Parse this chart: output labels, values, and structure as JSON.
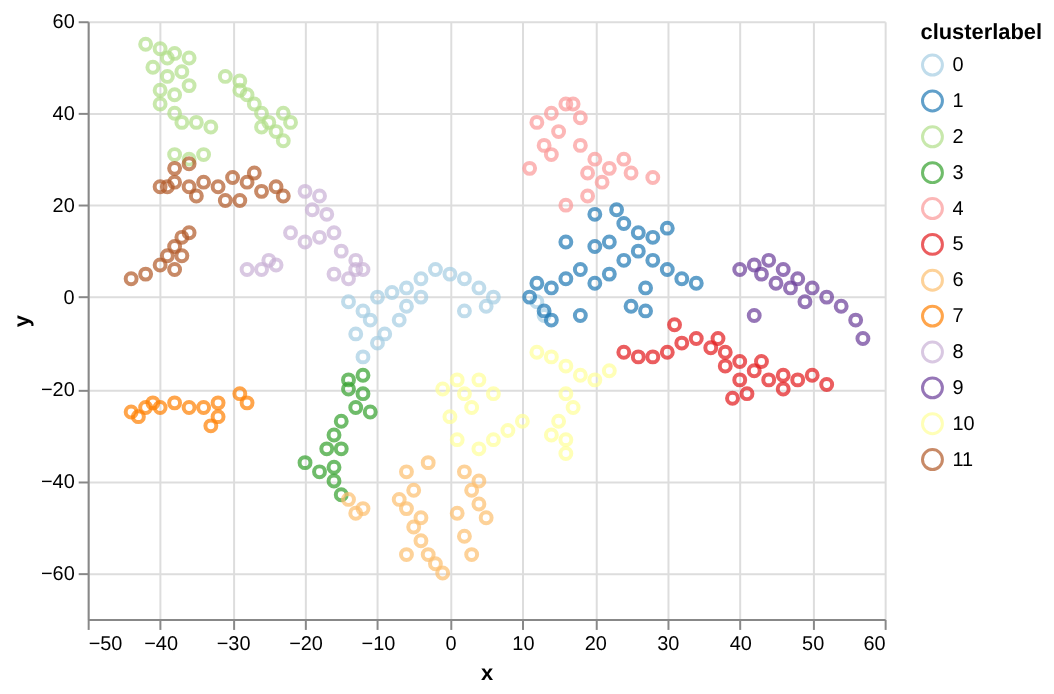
{
  "chart_data": {
    "type": "scatter",
    "xlabel": "x",
    "ylabel": "y",
    "legend_title": "clusterlabel",
    "legend": "top right",
    "grid": true,
    "marker": "circle",
    "xlim": [
      -50,
      60
    ],
    "ylim": [
      -70,
      60
    ],
    "xticks": [
      -50,
      -40,
      -30,
      -20,
      -10,
      0,
      10,
      20,
      30,
      40,
      50,
      60
    ],
    "yticks": [
      -60,
      -40,
      -20,
      0,
      20,
      40,
      60
    ],
    "series": [
      {
        "name": "0",
        "color": "#a6cee3",
        "x": [
          -14,
          -12,
          -10,
          -8,
          -6,
          -4,
          -2,
          0,
          2,
          4,
          6,
          -11,
          -13,
          -12,
          -9,
          -6,
          -4,
          -10,
          2,
          12,
          13,
          -7,
          5
        ],
        "values": [
          -1,
          -3,
          0,
          1,
          2,
          4,
          6,
          5,
          4,
          2,
          0,
          -5,
          -8,
          -13,
          -8,
          -2,
          0,
          -10,
          -3,
          -1,
          -4,
          -5,
          -2
        ]
      },
      {
        "name": "1",
        "color": "#1f78b4",
        "x": [
          11,
          12,
          14,
          16,
          18,
          20,
          22,
          24,
          26,
          28,
          30,
          32,
          34,
          26,
          24,
          22,
          28,
          18,
          14,
          25,
          27,
          20,
          16,
          20,
          23,
          30,
          13,
          27
        ],
        "values": [
          0,
          3,
          2,
          4,
          6,
          3,
          5,
          8,
          10,
          8,
          6,
          4,
          3,
          14,
          16,
          12,
          13,
          -4,
          -5,
          -2,
          -3,
          11,
          12,
          18,
          19,
          15,
          -3,
          2
        ]
      },
      {
        "name": "2",
        "color": "#b2df8a",
        "x": [
          -42,
          -40,
          -38,
          -36,
          -41,
          -39,
          -37,
          -40,
          -38,
          -36,
          -40,
          -38,
          -37,
          -35,
          -39,
          -33,
          -31,
          -29,
          -28,
          -27,
          -26,
          -25,
          -24,
          -23,
          -22,
          -23,
          -26,
          -29,
          -36,
          -34,
          -38
        ],
        "values": [
          55,
          54,
          53,
          52,
          50,
          48,
          49,
          45,
          44,
          46,
          42,
          40,
          38,
          38,
          52,
          37,
          48,
          47,
          44,
          42,
          40,
          38,
          36,
          34,
          38,
          40,
          37,
          45,
          30,
          31,
          31
        ]
      },
      {
        "name": "3",
        "color": "#33a02c",
        "x": [
          -12,
          -14,
          -13,
          -15,
          -16,
          -17,
          -16,
          -16,
          -15,
          -20,
          -18,
          -11,
          -14,
          -12,
          -15
        ],
        "values": [
          -17,
          -20,
          -24,
          -27,
          -30,
          -33,
          -37,
          -40,
          -43,
          -36,
          -38,
          -25,
          -18,
          -21,
          -33
        ]
      },
      {
        "name": "4",
        "color": "#fb9a99",
        "x": [
          12,
          14,
          16,
          18,
          15,
          13,
          18,
          20,
          22,
          24,
          21,
          19,
          25,
          28,
          11,
          14,
          19,
          16,
          17
        ],
        "values": [
          38,
          40,
          42,
          39,
          36,
          33,
          33,
          30,
          28,
          30,
          25,
          27,
          27,
          26,
          28,
          31,
          22,
          20,
          42
        ]
      },
      {
        "name": "5",
        "color": "#e31a1c",
        "x": [
          24,
          26,
          28,
          30,
          32,
          31,
          34,
          36,
          38,
          40,
          42,
          44,
          46,
          48,
          50,
          52,
          40,
          39,
          41,
          43,
          37,
          46,
          38
        ],
        "values": [
          -12,
          -13,
          -13,
          -12,
          -10,
          -6,
          -9,
          -11,
          -12,
          -14,
          -16,
          -18,
          -17,
          -18,
          -17,
          -19,
          -18,
          -22,
          -21,
          -14,
          -9,
          -20,
          -15
        ]
      },
      {
        "name": "6",
        "color": "#fdbf6f",
        "x": [
          -14,
          -12,
          -13,
          -6,
          -5,
          -6,
          -5,
          -4,
          -3,
          -2,
          -1,
          -4,
          -3,
          -6,
          2,
          3,
          4,
          5,
          2,
          3,
          4,
          1,
          -7
        ],
        "values": [
          -44,
          -46,
          -47,
          -38,
          -42,
          -46,
          -50,
          -53,
          -56,
          -58,
          -60,
          -48,
          -36,
          -56,
          -38,
          -42,
          -45,
          -48,
          -52,
          -56,
          -40,
          -47,
          -44
        ]
      },
      {
        "name": "7",
        "color": "#ff7f00",
        "x": [
          -44,
          -42,
          -40,
          -38,
          -36,
          -34,
          -32,
          -33,
          -32,
          -29,
          -28,
          -41,
          -43
        ],
        "values": [
          -25,
          -24,
          -24,
          -23,
          -24,
          -24,
          -23,
          -28,
          -26,
          -21,
          -23,
          -23,
          -26
        ]
      },
      {
        "name": "8",
        "color": "#cab2d6",
        "x": [
          -20,
          -18,
          -17,
          -16,
          -18,
          -20,
          -22,
          -15,
          -13,
          -16,
          -14,
          -12,
          -19,
          -28,
          -26,
          -24,
          -25,
          -13
        ],
        "values": [
          23,
          22,
          18,
          14,
          13,
          12,
          14,
          10,
          6,
          5,
          4,
          6,
          19,
          6,
          6,
          7,
          8,
          8
        ]
      },
      {
        "name": "9",
        "color": "#6a3d9a",
        "x": [
          40,
          42,
          44,
          46,
          48,
          50,
          52,
          54,
          56,
          57,
          45,
          43,
          49,
          42,
          47
        ],
        "values": [
          6,
          7,
          8,
          6,
          4,
          2,
          0,
          -2,
          -5,
          -9,
          3,
          5,
          -1,
          -4,
          2
        ]
      },
      {
        "name": "10",
        "color": "#ffff99",
        "x": [
          1,
          2,
          4,
          6,
          3,
          0,
          -1,
          12,
          14,
          16,
          18,
          20,
          16,
          17,
          15,
          16,
          14,
          16,
          6,
          8,
          10,
          4,
          1,
          22
        ],
        "values": [
          -18,
          -21,
          -18,
          -21,
          -24,
          -26,
          -20,
          -12,
          -13,
          -15,
          -17,
          -18,
          -21,
          -24,
          -27,
          -31,
          -30,
          -34,
          -31,
          -29,
          -27,
          -33,
          -31,
          -16
        ]
      },
      {
        "name": "11",
        "color": "#b15928",
        "x": [
          -40,
          -38,
          -36,
          -34,
          -32,
          -30,
          -28,
          -26,
          -24,
          -23,
          -38,
          -36,
          -31,
          -29,
          -35,
          -39,
          -27,
          -44,
          -42,
          -40,
          -39,
          -38,
          -37,
          -36,
          -37,
          -38
        ],
        "values": [
          24,
          25,
          24,
          25,
          24,
          26,
          25,
          23,
          24,
          22,
          28,
          29,
          21,
          21,
          22,
          24,
          27,
          4,
          5,
          7,
          9,
          11,
          13,
          14,
          9,
          6
        ]
      }
    ]
  }
}
